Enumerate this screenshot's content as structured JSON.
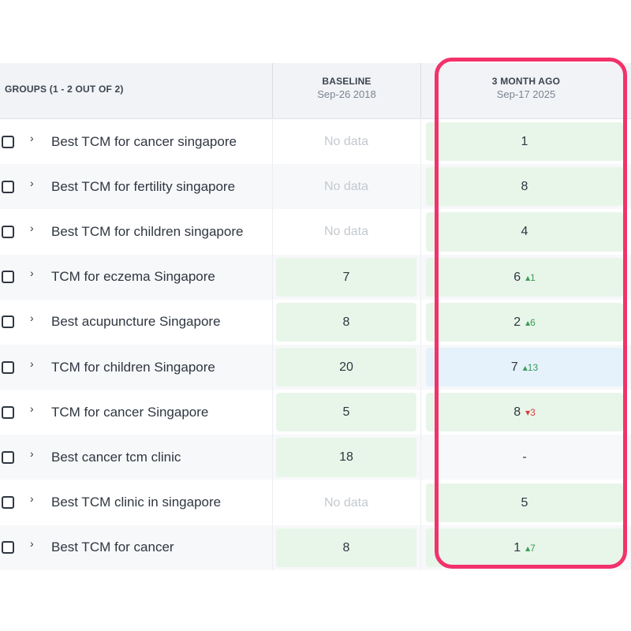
{
  "header": {
    "groups_label": "GROUPS (1 - 2 OUT OF 2)",
    "baseline": {
      "title": "BASELINE",
      "date": "Sep-26 2018"
    },
    "three_month": {
      "title": "3 MONTH AGO",
      "date": "Sep-17 2025"
    }
  },
  "no_data_label": "No data",
  "colors": {
    "highlight": "#f2326b",
    "positive_bg": "#e8f6ea",
    "highlight_bg": "#e5f2fb",
    "up": "#3a9a55",
    "down": "#d83b3b"
  },
  "rows": [
    {
      "keyword": "Best TCM for cancer singapore",
      "baseline": "No data",
      "three_month": "1",
      "change": "",
      "direction": ""
    },
    {
      "keyword": "Best TCM for fertility singapore",
      "baseline": "No data",
      "three_month": "8",
      "change": "",
      "direction": ""
    },
    {
      "keyword": "Best TCM for children singapore",
      "baseline": "No data",
      "three_month": "4",
      "change": "",
      "direction": ""
    },
    {
      "keyword": "TCM for eczema Singapore",
      "baseline": "7",
      "three_month": "6",
      "change": "1",
      "direction": "up"
    },
    {
      "keyword": "Best acupuncture Singapore",
      "baseline": "8",
      "three_month": "2",
      "change": "6",
      "direction": "up"
    },
    {
      "keyword": "TCM for children Singapore",
      "baseline": "20",
      "three_month": "7",
      "change": "13",
      "direction": "up"
    },
    {
      "keyword": "TCM for cancer Singapore",
      "baseline": "5",
      "three_month": "8",
      "change": "3",
      "direction": "down"
    },
    {
      "keyword": "Best cancer tcm clinic",
      "baseline": "18",
      "three_month": "-",
      "change": "",
      "direction": ""
    },
    {
      "keyword": "Best TCM clinic in singapore",
      "baseline": "No data",
      "three_month": "5",
      "change": "",
      "direction": ""
    },
    {
      "keyword": "Best TCM for cancer",
      "baseline": "8",
      "three_month": "1",
      "change": "7",
      "direction": "up"
    }
  ]
}
